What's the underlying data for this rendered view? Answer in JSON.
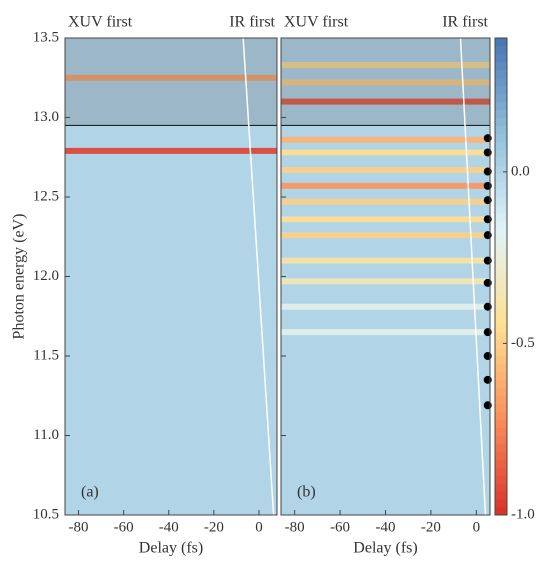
{
  "chart_data": [
    {
      "type": "heatmap",
      "panel_label": "(a)",
      "xlabel": "Delay (fs)",
      "ylabel": "Photon energy (eV)",
      "annotations": [
        "XUV first",
        "IR first"
      ],
      "xlim": [
        -86,
        8
      ],
      "ylim": [
        10.5,
        13.5
      ],
      "xticks": [
        -80,
        -60,
        -40,
        -20,
        0
      ],
      "yticks": [
        10.5,
        {
          "value": 11.0,
          "label": "11.0"
        },
        11.5,
        {
          "value": 12.0,
          "label": "12.0"
        },
        12.5,
        {
          "value": 13.0,
          "label": "13.0"
        },
        13.5
      ],
      "background": 0,
      "shade_above": 12.95,
      "stripes": [
        {
          "energy": 13.25,
          "value": -0.65
        },
        {
          "energy": 12.79,
          "value": -0.95
        }
      ],
      "ir_line": {
        "x": [
          -7,
          6.5
        ],
        "y": [
          13.5,
          10.5
        ]
      }
    },
    {
      "type": "heatmap",
      "panel_label": "(b)",
      "xlabel": "Delay (fs)",
      "annotations": [
        "XUV first",
        "IR first"
      ],
      "xlim": [
        -86,
        6
      ],
      "ylim": [
        10.5,
        13.5
      ],
      "xticks": [
        -80,
        -60,
        -40,
        -20,
        0
      ],
      "background": 0,
      "shade_above": 12.95,
      "stripes": [
        {
          "energy": 13.33,
          "value": -0.45
        },
        {
          "energy": 13.22,
          "value": -0.5
        },
        {
          "energy": 13.1,
          "value": -0.9
        },
        {
          "energy": 12.86,
          "value": -0.6
        },
        {
          "energy": 12.78,
          "value": -0.45
        },
        {
          "energy": 12.67,
          "value": -0.5
        },
        {
          "energy": 12.57,
          "value": -0.7
        },
        {
          "energy": 12.47,
          "value": -0.5
        },
        {
          "energy": 12.36,
          "value": -0.45
        },
        {
          "energy": 12.26,
          "value": -0.5
        },
        {
          "energy": 12.1,
          "value": -0.4
        },
        {
          "energy": 11.97,
          "value": -0.35
        },
        {
          "energy": 11.81,
          "value": -0.2
        },
        {
          "energy": 11.65,
          "value": -0.2
        }
      ],
      "ir_line": {
        "x": [
          -7,
          4
        ],
        "y": [
          13.5,
          10.5
        ]
      },
      "markers": {
        "x": [
          5,
          5,
          5,
          5,
          5,
          5,
          5,
          5,
          5,
          5,
          5,
          5,
          5,
          5
        ],
        "y": [
          12.87,
          12.78,
          12.66,
          12.57,
          12.48,
          12.36,
          12.26,
          12.1,
          11.96,
          11.81,
          11.65,
          11.5,
          11.35,
          11.19
        ]
      }
    }
  ],
  "colorbar": {
    "clim": [
      -1.0,
      0.39
    ],
    "ticks": [
      {
        "value": 0,
        "label": "0.0"
      },
      -0.5,
      {
        "value": -1.0,
        "label": "-1.0"
      }
    ],
    "colormap": [
      "#d73027",
      "#fc8d59",
      "#fee090",
      "#e0f3f8",
      "#91bfdb",
      "#4575b4"
    ]
  }
}
